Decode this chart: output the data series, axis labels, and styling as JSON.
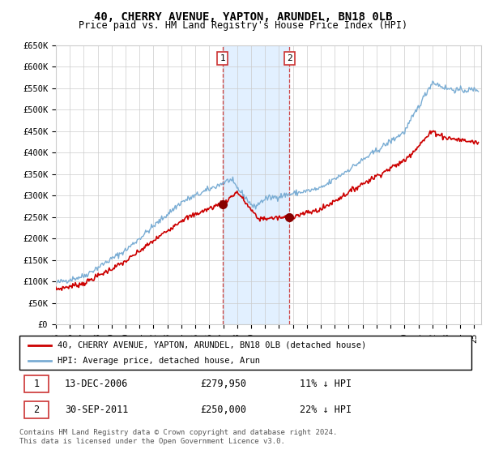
{
  "title": "40, CHERRY AVENUE, YAPTON, ARUNDEL, BN18 0LB",
  "subtitle": "Price paid vs. HM Land Registry's House Price Index (HPI)",
  "ylabel_ticks": [
    "£0",
    "£50K",
    "£100K",
    "£150K",
    "£200K",
    "£250K",
    "£300K",
    "£350K",
    "£400K",
    "£450K",
    "£500K",
    "£550K",
    "£600K",
    "£650K"
  ],
  "ytick_values": [
    0,
    50000,
    100000,
    150000,
    200000,
    250000,
    300000,
    350000,
    400000,
    450000,
    500000,
    550000,
    600000,
    650000
  ],
  "hpi_color": "#7aadd4",
  "price_color": "#cc0000",
  "shade_color": "#ddeeff",
  "annotation_color": "#cc3333",
  "purchase1_year": 2006.95,
  "purchase1_price": 279950,
  "purchase1_label": "1",
  "purchase2_year": 2011.75,
  "purchase2_price": 250000,
  "purchase2_label": "2",
  "legend_line1": "40, CHERRY AVENUE, YAPTON, ARUNDEL, BN18 0LB (detached house)",
  "legend_line2": "HPI: Average price, detached house, Arun",
  "table_row1_num": "1",
  "table_row1_date": "13-DEC-2006",
  "table_row1_price": "£279,950",
  "table_row1_hpi": "11% ↓ HPI",
  "table_row2_num": "2",
  "table_row2_date": "30-SEP-2011",
  "table_row2_price": "£250,000",
  "table_row2_hpi": "22% ↓ HPI",
  "footer": "Contains HM Land Registry data © Crown copyright and database right 2024.\nThis data is licensed under the Open Government Licence v3.0.",
  "xmin": 1995,
  "xmax": 2025.5,
  "ymin": 0,
  "ymax": 650000
}
